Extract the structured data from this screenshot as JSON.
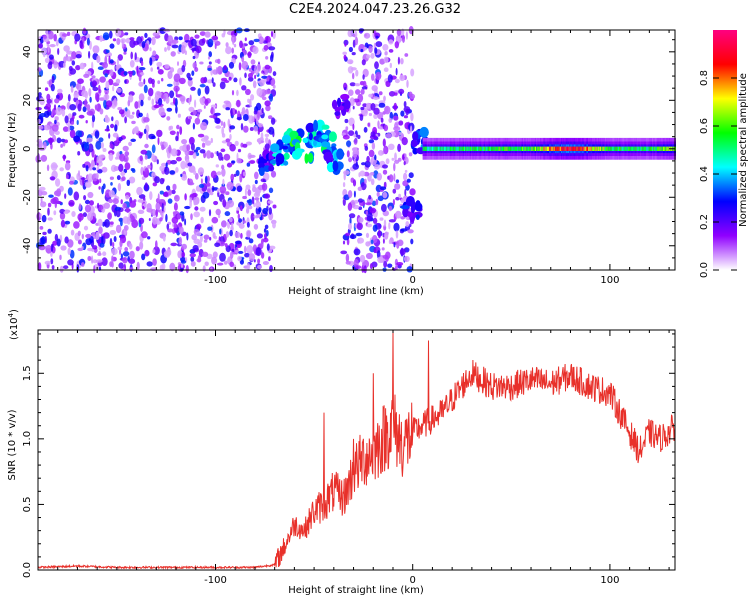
{
  "title": "C2E4.2024.047.23.26.G32",
  "chart_data": [
    {
      "type": "heatmap",
      "xlabel": "Height of straight line (km)",
      "ylabel": "Frequency (Hz)",
      "xlim": [
        -190,
        133
      ],
      "ylim": [
        -50,
        49
      ],
      "x_ticks": [
        -100,
        0,
        100
      ],
      "y_ticks": [
        -40,
        -20,
        0,
        20,
        40
      ],
      "colorbar": {
        "label": "Normalized spectral amplitude",
        "range": [
          0,
          1
        ],
        "ticks": [
          0.0,
          0.2,
          0.4,
          0.6,
          0.8
        ],
        "tick_labels": [
          "0.0",
          "0.2",
          "0.4",
          "0.6",
          "0.8"
        ],
        "colors": [
          "#ffffff",
          "#9000ff",
          "#0000ff",
          "#00ffff",
          "#00ff00",
          "#ffff00",
          "#ff0000",
          "#ff0080"
        ]
      },
      "noise_regions": [
        [
          -190,
          -70
        ],
        [
          -35,
          0
        ]
      ],
      "blank_regions": [
        [
          -70,
          -35
        ],
        [
          0,
          3
        ]
      ],
      "bright_blobs": [
        {
          "x": -73,
          "y": -6,
          "amp": 0.3
        },
        {
          "x": -67,
          "y": -2,
          "amp": 0.45
        },
        {
          "x": -60,
          "y": 3,
          "amp": 0.55
        },
        {
          "x": -55,
          "y": 0,
          "amp": 0.5
        },
        {
          "x": -48,
          "y": 6,
          "amp": 0.45
        },
        {
          "x": -43,
          "y": 2,
          "amp": 0.5
        },
        {
          "x": -40,
          "y": -5,
          "amp": 0.4
        },
        {
          "x": -36,
          "y": 18,
          "amp": 0.25
        },
        {
          "x": 0,
          "y": -25,
          "amp": 0.3
        },
        {
          "x": 4,
          "y": 3,
          "amp": 0.35
        }
      ],
      "carrier_band": {
        "x": [
          5,
          133
        ],
        "y": 0,
        "amp_points": [
          [
            5,
            0.5
          ],
          [
            30,
            0.55
          ],
          [
            60,
            0.6
          ],
          [
            80,
            0.95
          ],
          [
            100,
            0.55
          ],
          [
            120,
            0.55
          ],
          [
            133,
            0.7
          ]
        ]
      }
    },
    {
      "type": "line",
      "xlabel": "Height of straight line (km)",
      "ylabel": "SNR (10 * v/v)",
      "y_multiplier": "(x10",
      "y_multiplier_exp": "4",
      "y_multiplier_close": ")",
      "xlim": [
        -190,
        133
      ],
      "ylim": [
        0,
        1.83
      ],
      "x_ticks": [
        -100,
        0,
        100
      ],
      "y_ticks": [
        0.0,
        0.5,
        1.0,
        1.5
      ],
      "y_tick_labels": [
        "0.0",
        "0.5",
        "1.0",
        "1.5"
      ],
      "line_color": "#e8302a",
      "x": [
        -190,
        -170,
        -150,
        -130,
        -110,
        -90,
        -80,
        -70,
        -65,
        -60,
        -55,
        -50,
        -45,
        -40,
        -35,
        -30,
        -25,
        -20,
        -15,
        -10,
        -5,
        0,
        5,
        10,
        15,
        20,
        25,
        30,
        35,
        40,
        50,
        60,
        70,
        80,
        90,
        100,
        110,
        115,
        120,
        125,
        130,
        133
      ],
      "y": [
        0.02,
        0.03,
        0.02,
        0.02,
        0.02,
        0.02,
        0.02,
        0.04,
        0.18,
        0.35,
        0.3,
        0.45,
        0.5,
        0.6,
        0.55,
        0.75,
        0.85,
        0.9,
        1.0,
        1.1,
        0.95,
        1.05,
        1.1,
        1.15,
        1.2,
        1.3,
        1.4,
        1.5,
        1.45,
        1.4,
        1.4,
        1.45,
        1.42,
        1.48,
        1.4,
        1.35,
        1.05,
        0.9,
        1.05,
        1.0,
        1.05,
        1.1
      ],
      "spikes": [
        [
          -10,
          1.83
        ],
        [
          8,
          1.75
        ],
        [
          -30,
          1.0
        ],
        [
          -45,
          1.2
        ],
        [
          -20,
          1.5
        ]
      ]
    }
  ]
}
